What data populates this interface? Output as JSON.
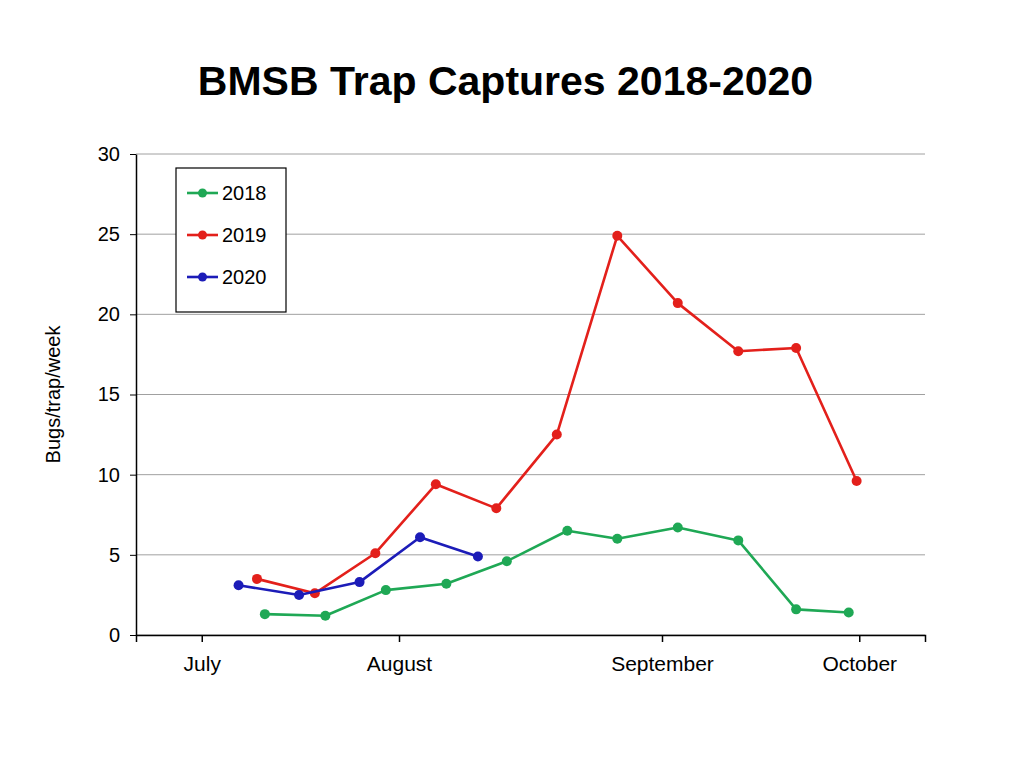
{
  "chart_data": {
    "type": "line",
    "title": "BMSB Trap Captures 2018-2020",
    "y_label": "Bugs/trap/week",
    "xlim": [
      7.5,
      10.5
    ],
    "xticks": [
      {
        "value": 7.75,
        "label": "July"
      },
      {
        "value": 8.5,
        "label": "August"
      },
      {
        "value": 9.5,
        "label": "September"
      },
      {
        "value": 10.25,
        "label": "October"
      }
    ],
    "ylim": [
      0,
      30
    ],
    "yticks": [
      0,
      5,
      10,
      15,
      20,
      25,
      30
    ],
    "grid": true,
    "legend": "upper left",
    "marker": "circle",
    "series": [
      {
        "name": "2018",
        "color": "#1fa855",
        "x": [
          7.99,
          8.22,
          8.45,
          8.68,
          8.91,
          9.14,
          9.33,
          9.56,
          9.79,
          10.01,
          10.21
        ],
        "values": [
          1.3,
          1.2,
          2.8,
          3.2,
          4.6,
          6.5,
          6.0,
          6.7,
          5.9,
          1.6,
          1.4
        ]
      },
      {
        "name": "2019",
        "color": "#e3201b",
        "x": [
          7.96,
          8.18,
          8.41,
          8.64,
          8.87,
          9.1,
          9.33,
          9.56,
          9.79,
          10.01,
          10.24
        ],
        "values": [
          3.5,
          2.6,
          5.1,
          9.4,
          7.9,
          12.5,
          24.9,
          20.7,
          17.7,
          17.9,
          9.6
        ]
      },
      {
        "name": "2020",
        "color": "#1c1cb8",
        "x": [
          7.89,
          8.12,
          8.35,
          8.58,
          8.8
        ],
        "values": [
          3.1,
          2.5,
          3.3,
          6.1,
          4.9
        ]
      }
    ]
  }
}
